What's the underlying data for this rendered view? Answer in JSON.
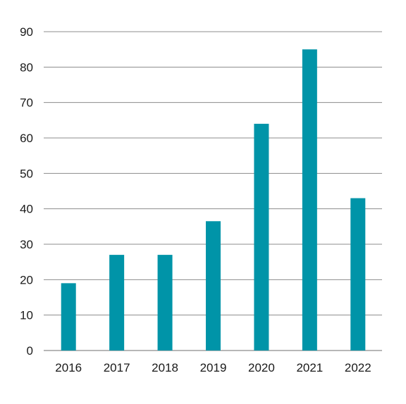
{
  "chart_data": {
    "type": "bar",
    "title": "",
    "xlabel": "",
    "ylabel": "",
    "categories": [
      "2016",
      "2017",
      "2018",
      "2019",
      "2020",
      "2021",
      "2022"
    ],
    "values": [
      19,
      27,
      27,
      36.5,
      64,
      85,
      43
    ],
    "ylim": [
      0,
      90
    ],
    "yticks": [
      0,
      10,
      20,
      30,
      40,
      50,
      60,
      70,
      80,
      90
    ],
    "grid": true,
    "legend": "none",
    "bar_color": "#0094a8",
    "grid_color": "#8c8c8c",
    "text_color": "#1a1a1a"
  }
}
